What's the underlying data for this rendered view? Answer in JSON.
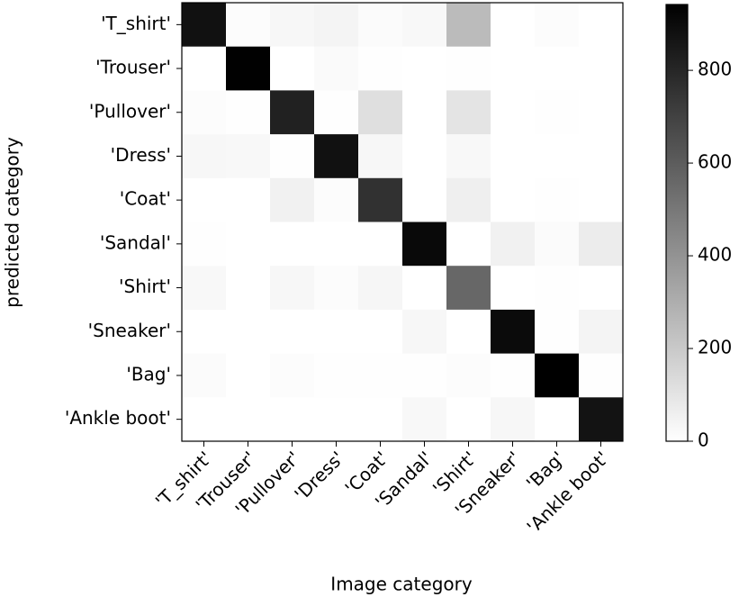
{
  "chart_data": {
    "type": "heatmap",
    "x_categories": [
      "'T_shirt'",
      "'Trouser'",
      "'Pullover'",
      "'Dress'",
      "'Coat'",
      "'Sandal'",
      "'Shirt'",
      "'Sneaker'",
      "'Bag'",
      "'Ankle boot'"
    ],
    "y_categories": [
      "'T_shirt'",
      "'Trouser'",
      "'Pullover'",
      "'Dress'",
      "'Coat'",
      "'Sandal'",
      "'Shirt'",
      "'Sneaker'",
      "'Bag'",
      "'Ankle boot'"
    ],
    "values": [
      [
        880,
        10,
        30,
        40,
        15,
        25,
        250,
        0,
        10,
        0
      ],
      [
        0,
        940,
        0,
        20,
        5,
        0,
        5,
        0,
        0,
        0
      ],
      [
        10,
        5,
        820,
        5,
        120,
        0,
        100,
        0,
        5,
        0
      ],
      [
        30,
        25,
        5,
        880,
        30,
        0,
        25,
        0,
        0,
        0
      ],
      [
        0,
        0,
        50,
        10,
        760,
        0,
        60,
        0,
        5,
        0
      ],
      [
        5,
        0,
        0,
        0,
        0,
        910,
        0,
        50,
        15,
        70
      ],
      [
        25,
        0,
        30,
        10,
        35,
        0,
        560,
        0,
        5,
        0
      ],
      [
        0,
        0,
        0,
        0,
        0,
        30,
        0,
        900,
        5,
        40
      ],
      [
        15,
        0,
        10,
        5,
        5,
        5,
        10,
        5,
        942,
        5
      ],
      [
        0,
        0,
        0,
        0,
        0,
        25,
        0,
        30,
        0,
        870
      ]
    ],
    "xlabel": "Image category",
    "ylabel": "predicted category",
    "colormap": "gray_r",
    "zlim": [
      0,
      942
    ],
    "zticks": [
      0,
      200,
      400,
      600,
      800
    ]
  }
}
